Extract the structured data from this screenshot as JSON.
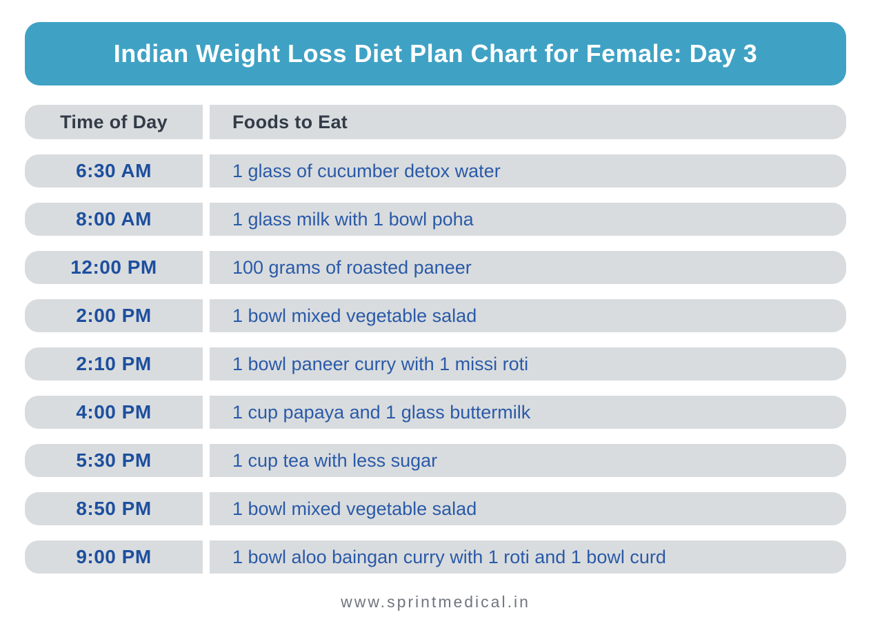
{
  "title": "Indian Weight Loss Diet Plan Chart for Female: Day 3",
  "table": {
    "headers": {
      "time": "Time of Day",
      "food": "Foods to Eat"
    },
    "rows": [
      {
        "time": "6:30 AM",
        "food": "1 glass of cucumber detox water"
      },
      {
        "time": "8:00 AM",
        "food": "1 glass milk with 1 bowl poha"
      },
      {
        "time": "12:00 PM",
        "food": "100 grams of roasted paneer"
      },
      {
        "time": "2:00 PM",
        "food": "1 bowl mixed vegetable salad"
      },
      {
        "time": "2:10 PM",
        "food": "1 bowl paneer curry with 1 missi roti"
      },
      {
        "time": "4:00 PM",
        "food": "1 cup papaya and 1 glass buttermilk"
      },
      {
        "time": "5:30 PM",
        "food": "1 cup tea with less sugar"
      },
      {
        "time": "8:50 PM",
        "food": "1 bowl mixed vegetable salad"
      },
      {
        "time": "9:00 PM",
        "food": "1 bowl aloo baingan curry with 1 roti and 1 bowl curd"
      }
    ]
  },
  "footer": {
    "website": "www.sprintmedical.in"
  },
  "colors": {
    "banner_bg": "#3FA2C4",
    "banner_text": "#FFFFFF",
    "row_bg": "#D9DCDE",
    "header_text": "#333B48",
    "time_text": "#1D4F9E",
    "food_text": "#2A5AA8",
    "footer_text": "#70757E"
  },
  "chart_data": {
    "type": "table",
    "title": "Indian Weight Loss Diet Plan Chart for Female: Day 3",
    "columns": [
      "Time of Day",
      "Foods to Eat"
    ],
    "rows": [
      [
        "6:30 AM",
        "1 glass of cucumber detox water"
      ],
      [
        "8:00 AM",
        "1 glass milk with 1 bowl poha"
      ],
      [
        "12:00 PM",
        "100 grams of roasted paneer"
      ],
      [
        "2:00 PM",
        "1 bowl mixed vegetable salad"
      ],
      [
        "2:10 PM",
        "1 bowl paneer curry with 1 missi roti"
      ],
      [
        "4:00 PM",
        "1 cup papaya and 1 glass buttermilk"
      ],
      [
        "5:30 PM",
        "1 cup tea with less sugar"
      ],
      [
        "8:50 PM",
        "1 bowl mixed vegetable salad"
      ],
      [
        "9:00 PM",
        "1 bowl aloo baingan curry with 1 roti and 1 bowl curd"
      ]
    ],
    "legend": "none",
    "notes": "Static infographic table; left column pill ends rounded left, right column pill ends rounded right"
  }
}
